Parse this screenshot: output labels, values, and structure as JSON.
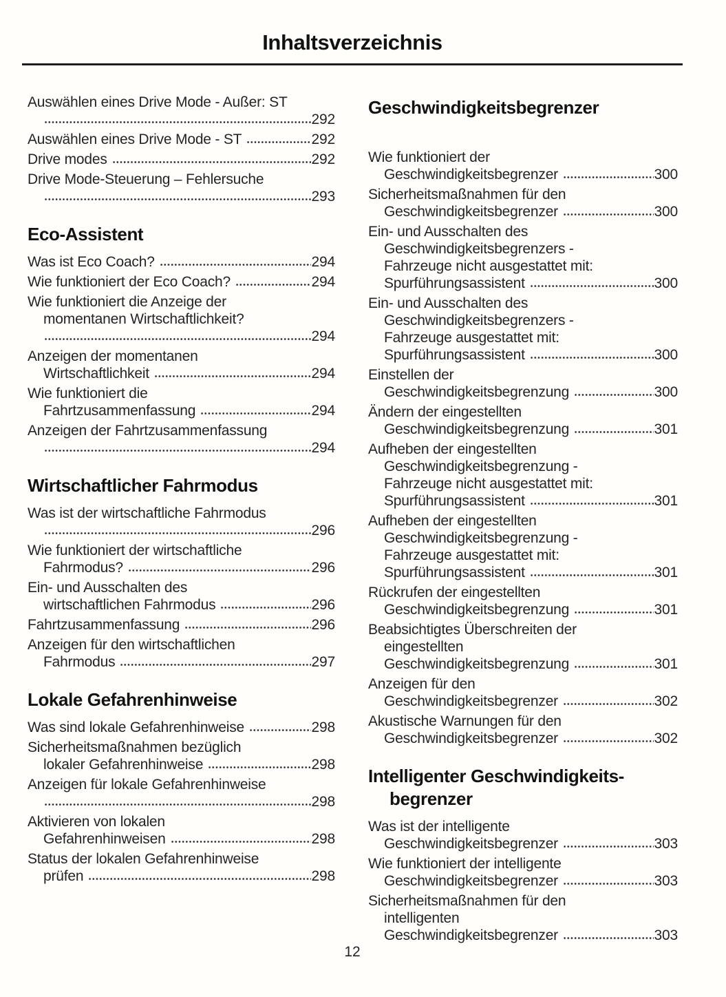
{
  "toc": {
    "title": "Inhaltsverzeichnis",
    "page_number": "12",
    "text_color": "#242424",
    "rule_color": "#1d1d1d",
    "columns": [
      {
        "sections": [
          {
            "heading": null,
            "entries": [
              {
                "lines": [
                  "Auswählen eines Drive Mode - Außer: ST"
                ],
                "page": "292",
                "leader_alone": true
              },
              {
                "lines": [
                  "Auswählen eines Drive Mode - ST"
                ],
                "page": "292",
                "leader_alone": false
              },
              {
                "lines": [
                  "Drive modes"
                ],
                "page": "292",
                "leader_alone": false
              },
              {
                "lines": [
                  "Drive Mode-Steuerung – Fehlersuche"
                ],
                "page": "293",
                "leader_alone": true
              }
            ]
          },
          {
            "heading": [
              "Eco-Assistent"
            ],
            "entries": [
              {
                "lines": [
                  "Was ist Eco Coach?"
                ],
                "page": "294",
                "leader_alone": false
              },
              {
                "lines": [
                  "Wie funktioniert der Eco Coach?"
                ],
                "page": "294",
                "leader_alone": false
              },
              {
                "lines": [
                  "Wie funktioniert die Anzeige der",
                  "momentanen Wirtschaftlichkeit?"
                ],
                "page": "294",
                "leader_alone": true
              },
              {
                "lines": [
                  "Anzeigen der momentanen",
                  "Wirtschaftlichkeit"
                ],
                "page": "294",
                "leader_alone": false
              },
              {
                "lines": [
                  "Wie funktioniert die",
                  "Fahrtzusammenfassung"
                ],
                "page": "294",
                "leader_alone": false
              },
              {
                "lines": [
                  "Anzeigen der Fahrtzusammenfassung"
                ],
                "page": "294",
                "leader_alone": true
              }
            ]
          },
          {
            "heading": [
              "Wirtschaftlicher Fahrmodus"
            ],
            "entries": [
              {
                "lines": [
                  "Was ist der wirtschaftliche Fahrmodus"
                ],
                "page": "296",
                "leader_alone": true
              },
              {
                "lines": [
                  "Wie funktioniert der wirtschaftliche",
                  "Fahrmodus?"
                ],
                "page": "296",
                "leader_alone": false
              },
              {
                "lines": [
                  "Ein- und Ausschalten des",
                  "wirtschaftlichen Fahrmodus"
                ],
                "page": "296",
                "leader_alone": false
              },
              {
                "lines": [
                  "Fahrtzusammenfassung"
                ],
                "page": "296",
                "leader_alone": false
              },
              {
                "lines": [
                  "Anzeigen für den wirtschaftlichen",
                  "Fahrmodus"
                ],
                "page": "297",
                "leader_alone": false
              }
            ]
          },
          {
            "heading": [
              "Lokale Gefahrenhinweise"
            ],
            "entries": [
              {
                "lines": [
                  "Was sind lokale Gefahrenhinweise"
                ],
                "page": "298",
                "leader_alone": false
              },
              {
                "lines": [
                  "Sicherheitsmaßnahmen bezüglich",
                  "lokaler Gefahrenhinweise"
                ],
                "page": "298",
                "leader_alone": false
              },
              {
                "lines": [
                  "Anzeigen für lokale Gefahrenhinweise"
                ],
                "page": "298",
                "leader_alone": true
              },
              {
                "lines": [
                  "Aktivieren von lokalen",
                  "Gefahrenhinweisen"
                ],
                "page": "298",
                "leader_alone": false
              },
              {
                "lines": [
                  "Status der lokalen Gefahrenhinweise",
                  "prüfen"
                ],
                "page": "298",
                "leader_alone": false
              }
            ]
          }
        ]
      },
      {
        "sections": [
          {
            "heading": [
              "Geschwindigkeitsbegrenzer"
            ],
            "extra_gap": true,
            "entries": [
              {
                "lines": [
                  "Wie funktioniert der",
                  "Geschwindigkeitsbegrenzer"
                ],
                "page": "300",
                "leader_alone": false
              },
              {
                "lines": [
                  "Sicherheitsmaßnahmen für den",
                  "Geschwindigkeitsbegrenzer"
                ],
                "page": "300",
                "leader_alone": false
              },
              {
                "lines": [
                  "Ein- und Ausschalten des",
                  "Geschwindigkeitsbegrenzers -",
                  "Fahrzeuge nicht ausgestattet mit:",
                  "Spurführungsassistent"
                ],
                "page": "300",
                "leader_alone": false
              },
              {
                "lines": [
                  "Ein- und Ausschalten des",
                  "Geschwindigkeitsbegrenzers -",
                  "Fahrzeuge ausgestattet mit:",
                  "Spurführungsassistent"
                ],
                "page": "300",
                "leader_alone": false
              },
              {
                "lines": [
                  "Einstellen der",
                  "Geschwindigkeitsbegrenzung"
                ],
                "page": "300",
                "leader_alone": false
              },
              {
                "lines": [
                  "Ändern der eingestellten",
                  "Geschwindigkeitsbegrenzung"
                ],
                "page": "301",
                "leader_alone": false
              },
              {
                "lines": [
                  "Aufheben der eingestellten",
                  "Geschwindigkeitsbegrenzung -",
                  "Fahrzeuge nicht ausgestattet mit:",
                  "Spurführungsassistent"
                ],
                "page": "301",
                "leader_alone": false
              },
              {
                "lines": [
                  "Aufheben der eingestellten",
                  "Geschwindigkeitsbegrenzung -",
                  "Fahrzeuge ausgestattet mit:",
                  "Spurführungsassistent"
                ],
                "page": "301",
                "leader_alone": false
              },
              {
                "lines": [
                  "Rückrufen der eingestellten",
                  "Geschwindigkeitsbegrenzung"
                ],
                "page": "301",
                "leader_alone": false
              },
              {
                "lines": [
                  "Beabsichtigtes Überschreiten der",
                  "eingestellten",
                  "Geschwindigkeitsbegrenzung"
                ],
                "page": "301",
                "leader_alone": false
              },
              {
                "lines": [
                  "Anzeigen für den",
                  "Geschwindigkeitsbegrenzer"
                ],
                "page": "302",
                "leader_alone": false
              },
              {
                "lines": [
                  "Akustische Warnungen für den",
                  "Geschwindigkeitsbegrenzer"
                ],
                "page": "302",
                "leader_alone": false
              }
            ]
          },
          {
            "heading": [
              "Intelligenter Geschwindigkeits-",
              "begrenzer"
            ],
            "entries": [
              {
                "lines": [
                  "Was ist der intelligente",
                  "Geschwindigkeitsbegrenzer"
                ],
                "page": "303",
                "leader_alone": false
              },
              {
                "lines": [
                  "Wie funktioniert der intelligente",
                  "Geschwindigkeitsbegrenzer"
                ],
                "page": "303",
                "leader_alone": false
              },
              {
                "lines": [
                  "Sicherheitsmaßnahmen für den",
                  "intelligenten",
                  "Geschwindigkeitsbegrenzer"
                ],
                "page": "303",
                "leader_alone": false
              }
            ]
          }
        ]
      }
    ]
  }
}
